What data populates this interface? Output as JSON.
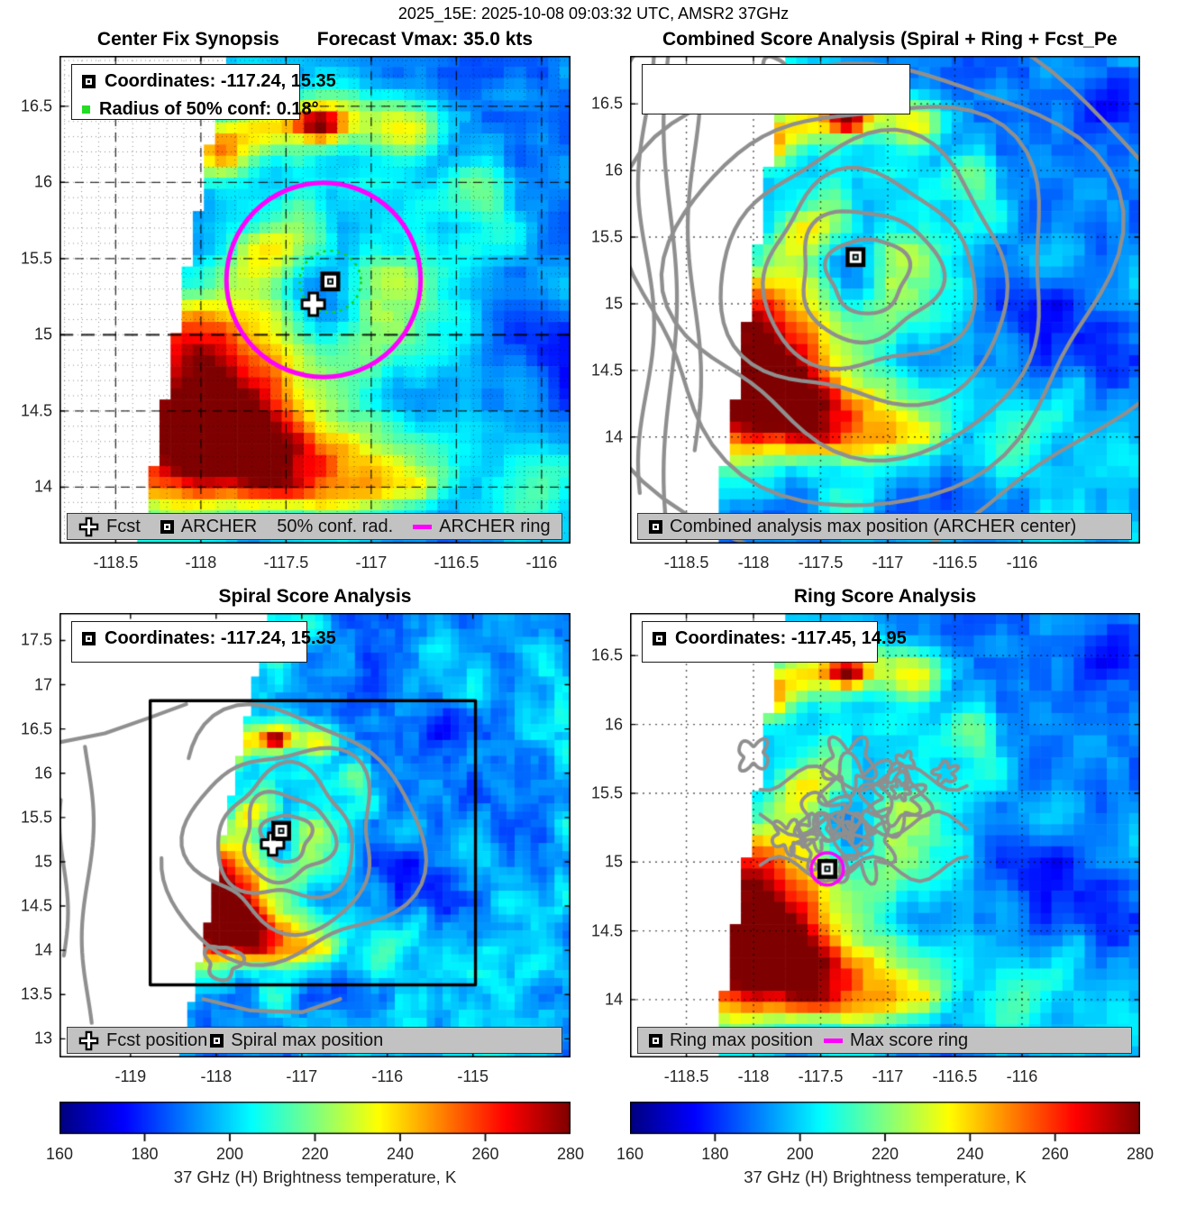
{
  "figure": {
    "title": "2025_15E: 2025-10-08 09:03:32 UTC, AMSR2 37GHz"
  },
  "panels": {
    "center_fix": {
      "title": "Center Fix Synopsis",
      "subtitle": "Forecast Vmax: 35.0 kts",
      "legend": [
        {
          "marker": "square",
          "label": "Coordinates: -117.24, 15.35"
        },
        {
          "marker": "green-square",
          "label": "Radius of 50% conf: 0.18°"
        }
      ],
      "legend_bar": [
        {
          "marker": "cross",
          "label": "Fcst"
        },
        {
          "marker": "square",
          "label": "ARCHER"
        },
        {
          "marker": "none",
          "label": "50% conf. rad."
        },
        {
          "marker": "magenta-line",
          "label": "ARCHER ring"
        }
      ]
    },
    "combined": {
      "title": "Combined Score Analysis (Spiral + Ring + Fcst_Pe",
      "legend": [],
      "legend_bar": [
        {
          "marker": "square",
          "label": "Combined analysis max position (ARCHER center)"
        }
      ]
    },
    "spiral": {
      "title": "Spiral Score Analysis",
      "legend": [
        {
          "marker": "square",
          "label": "Coordinates: -117.24, 15.35"
        }
      ],
      "legend_bar": [
        {
          "marker": "cross",
          "label": "Fcst position"
        },
        {
          "marker": "square",
          "label": "Spiral max position"
        }
      ]
    },
    "ring": {
      "title": "Ring Score Analysis",
      "legend": [
        {
          "marker": "square",
          "label": "Coordinates: -117.45, 14.95"
        }
      ],
      "legend_bar": [
        {
          "marker": "square",
          "label": "Ring max position"
        },
        {
          "marker": "magenta-line",
          "label": "Max score ring"
        }
      ]
    }
  },
  "colorbar": {
    "label": "37 GHz (H) Brightness temperature, K",
    "ticks": [
      160,
      180,
      200,
      220,
      240,
      260,
      280
    ],
    "min": 160,
    "max": 280,
    "colormap": "jet"
  },
  "colors": {
    "magenta": "#ff00ff",
    "conf_green": "#19d219",
    "contour_gray": "#8f8f8f",
    "legend_bar_bg": "#c2c2c2"
  },
  "chart_data": [
    {
      "id": "center_fix",
      "type": "heatmap",
      "title": "Center Fix Synopsis",
      "subtitle": "Forecast Vmax: 35.0 kts",
      "forecast_vmax_kts": 35.0,
      "xlim": [
        -118.83,
        -115.83
      ],
      "ylim": [
        13.63,
        16.83
      ],
      "xticks": [
        -118.5,
        -118,
        -117.5,
        -117,
        -116.5,
        -116
      ],
      "yticks": [
        16.5,
        16,
        15.5,
        15,
        14.5,
        14
      ],
      "grid": "fine dotted minor + dashed major",
      "colormap": "jet",
      "value_range_K": [
        160,
        280
      ],
      "markers": {
        "archer_center_lonlat": [
          -117.24,
          15.35
        ],
        "fcst_position_lonlat": [
          -117.34,
          15.2
        ],
        "radius_50pct_conf_deg": 0.18,
        "archer_ring": {
          "center_lonlat": [
            -117.28,
            15.36
          ],
          "radius_deg": 0.57
        }
      }
    },
    {
      "id": "combined",
      "type": "heatmap",
      "title": "Combined Score Analysis (Spiral + Ring + Fcst_Pe",
      "xlim": [
        -118.92,
        -115.12
      ],
      "ylim": [
        13.2,
        16.86
      ],
      "xticks": [
        -118.5,
        -118,
        -117.5,
        -117,
        -116.5,
        -116
      ],
      "yticks": [
        16.5,
        16,
        15.5,
        15,
        14.5,
        14
      ],
      "grid": "dotted at major ticks",
      "colormap": "jet",
      "value_range_K": [
        160,
        280
      ],
      "overlay": "gray combined-score contour lines",
      "markers": {
        "combined_max_lonlat": [
          -117.24,
          15.35
        ]
      }
    },
    {
      "id": "spiral",
      "type": "heatmap",
      "title": "Spiral Score Analysis",
      "xlim": [
        -119.83,
        -113.86
      ],
      "ylim": [
        12.79,
        17.81
      ],
      "xticks": [
        -119,
        -118,
        -117,
        -116,
        -115
      ],
      "yticks": [
        17.5,
        17,
        16.5,
        16,
        15.5,
        15,
        14.5,
        14,
        13.5,
        13
      ],
      "grid": "none",
      "colormap": "jet",
      "value_range_K": [
        160,
        280
      ],
      "overlay": "gray spiral-score contour lines; black rectangle = analysis domain",
      "domain_box": {
        "x": [
          -118.77,
          -114.97
        ],
        "y": [
          13.61,
          16.82
        ]
      },
      "markers": {
        "spiral_max_lonlat": [
          -117.24,
          15.35
        ],
        "fcst_position_lonlat": [
          -117.34,
          15.2
        ]
      }
    },
    {
      "id": "ring",
      "type": "heatmap",
      "title": "Ring Score Analysis",
      "xlim": [
        -118.92,
        -115.12
      ],
      "ylim": [
        13.58,
        16.81
      ],
      "xticks": [
        -118.5,
        -118,
        -117.5,
        -117,
        -116.5,
        -116
      ],
      "yticks": [
        16.5,
        16,
        15.5,
        15,
        14.5,
        14
      ],
      "grid": "dotted at major ticks",
      "colormap": "jet",
      "value_range_K": [
        160,
        280
      ],
      "overlay": "gray ring-score contour lines",
      "markers": {
        "ring_max_lonlat": [
          -117.45,
          14.95
        ],
        "max_score_ring": {
          "center_lonlat": [
            -117.45,
            14.95
          ],
          "radius_deg": 0.12
        }
      }
    }
  ]
}
